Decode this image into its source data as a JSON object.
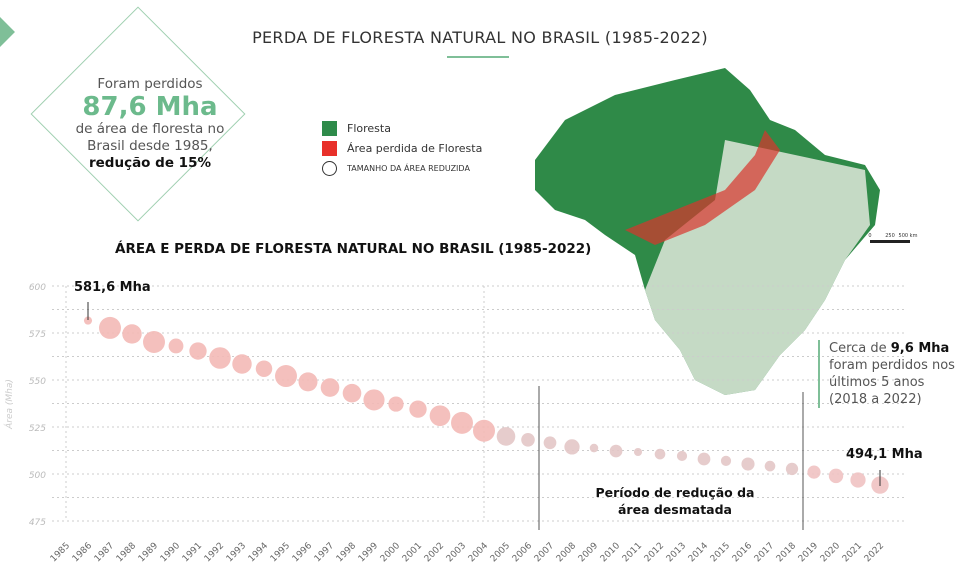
{
  "header": {
    "title": "PERDA DE FLORESTA NATURAL NO BRASIL (1985-2022)"
  },
  "callout": {
    "line1": "Foram perdidos",
    "value": "87,6 Mha",
    "line2": "de área de floresta no Brasil desde 1985,",
    "bold": "redução de 15%"
  },
  "legend": {
    "items": [
      {
        "label": "Floresta",
        "color": "#2e8b4a"
      },
      {
        "label": "Área perdida de Floresta",
        "color": "#e8302a"
      },
      {
        "label": "TAMANHO DA ÁREA REDUZIDA"
      }
    ]
  },
  "map": {
    "scale_labels": [
      "0",
      "250",
      "500 km"
    ]
  },
  "note": {
    "pre": "Cerca de ",
    "bold": "9,6 Mha",
    "rest": "foram perdidos nos últimos 5 anos (2018 a 2022)"
  },
  "period_label": "Período de redução da área desmatada",
  "chart_data": {
    "type": "scatter",
    "title": "ÁREA E PERDA DE FLORESTA NATURAL NO BRASIL (1985-2022)",
    "ylabel": "Área (Mha)",
    "ylim": [
      475,
      600
    ],
    "yticks": [
      475,
      500,
      525,
      550,
      575,
      600
    ],
    "grid": true,
    "categories": [
      "1985",
      "1986",
      "1987",
      "1988",
      "1989",
      "1990",
      "1991",
      "1992",
      "1993",
      "1994",
      "1995",
      "1996",
      "1997",
      "1998",
      "1999",
      "2000",
      "2001",
      "2002",
      "2003",
      "2004",
      "2005",
      "2006",
      "2007",
      "2008",
      "2009",
      "2010",
      "2011",
      "2012",
      "2013",
      "2014",
      "2015",
      "2016",
      "2017",
      "2018",
      "2019",
      "2020",
      "2021",
      "2022"
    ],
    "values": [
      null,
      581.6,
      577.7,
      574.5,
      570.2,
      568.1,
      565.4,
      561.7,
      558.5,
      556.0,
      552.1,
      549.0,
      546.0,
      543.0,
      539.4,
      537.2,
      534.5,
      531.0,
      527.2,
      523.0,
      520.0,
      518.2,
      516.6,
      514.4,
      513.8,
      512.2,
      511.7,
      510.6,
      509.6,
      508.0,
      507.0,
      505.3,
      504.2,
      502.7,
      501.0,
      499.0,
      496.8,
      494.1
    ],
    "point_color": "#f0b8b8",
    "annotations": [
      {
        "label": "581,6 Mha",
        "x": "1986"
      },
      {
        "label": "494,1 Mha",
        "x": "2022"
      }
    ],
    "reference_lines": [
      "2006",
      "2018"
    ]
  }
}
